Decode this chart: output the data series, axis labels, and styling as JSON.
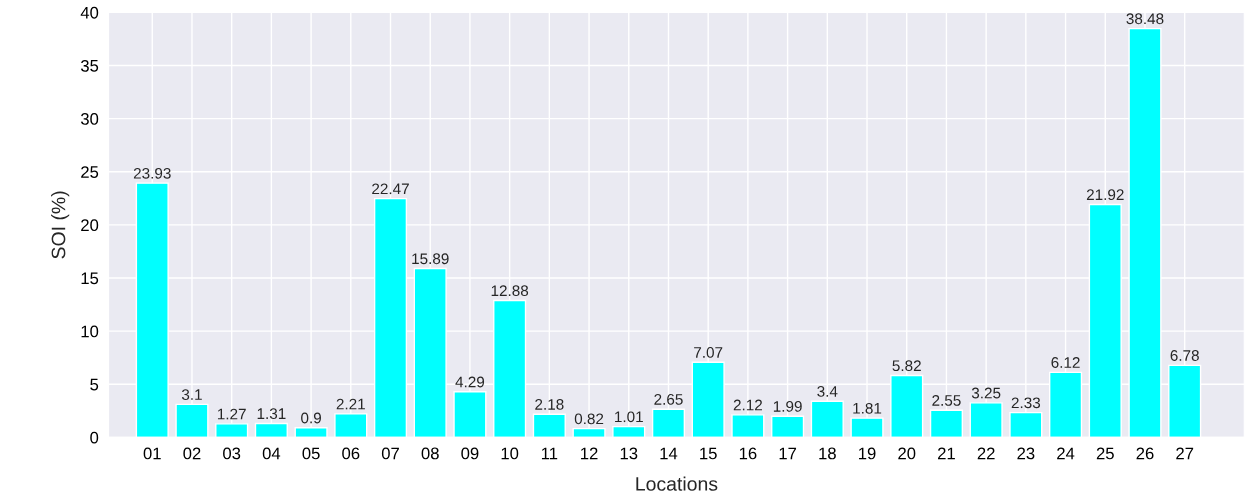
{
  "chart_data": {
    "type": "bar",
    "xlabel": "Locations",
    "ylabel": "SOI (%)",
    "categories": [
      "01",
      "02",
      "03",
      "04",
      "05",
      "06",
      "07",
      "08",
      "09",
      "10",
      "11",
      "12",
      "13",
      "14",
      "15",
      "16",
      "17",
      "18",
      "19",
      "20",
      "21",
      "22",
      "23",
      "24",
      "25",
      "26",
      "27"
    ],
    "values": [
      23.93,
      3.1,
      1.27,
      1.31,
      0.9,
      2.21,
      22.47,
      15.89,
      4.29,
      12.88,
      2.18,
      0.82,
      1.01,
      2.65,
      7.07,
      2.12,
      1.99,
      3.4,
      1.81,
      5.82,
      2.55,
      3.25,
      2.33,
      6.12,
      21.92,
      38.48,
      6.78
    ],
    "color": "#00ffff",
    "ylim": [
      0,
      40
    ],
    "yticks": [
      0,
      5,
      10,
      15,
      20,
      25,
      30,
      35,
      40
    ],
    "grid": true,
    "data_labels": true
  }
}
